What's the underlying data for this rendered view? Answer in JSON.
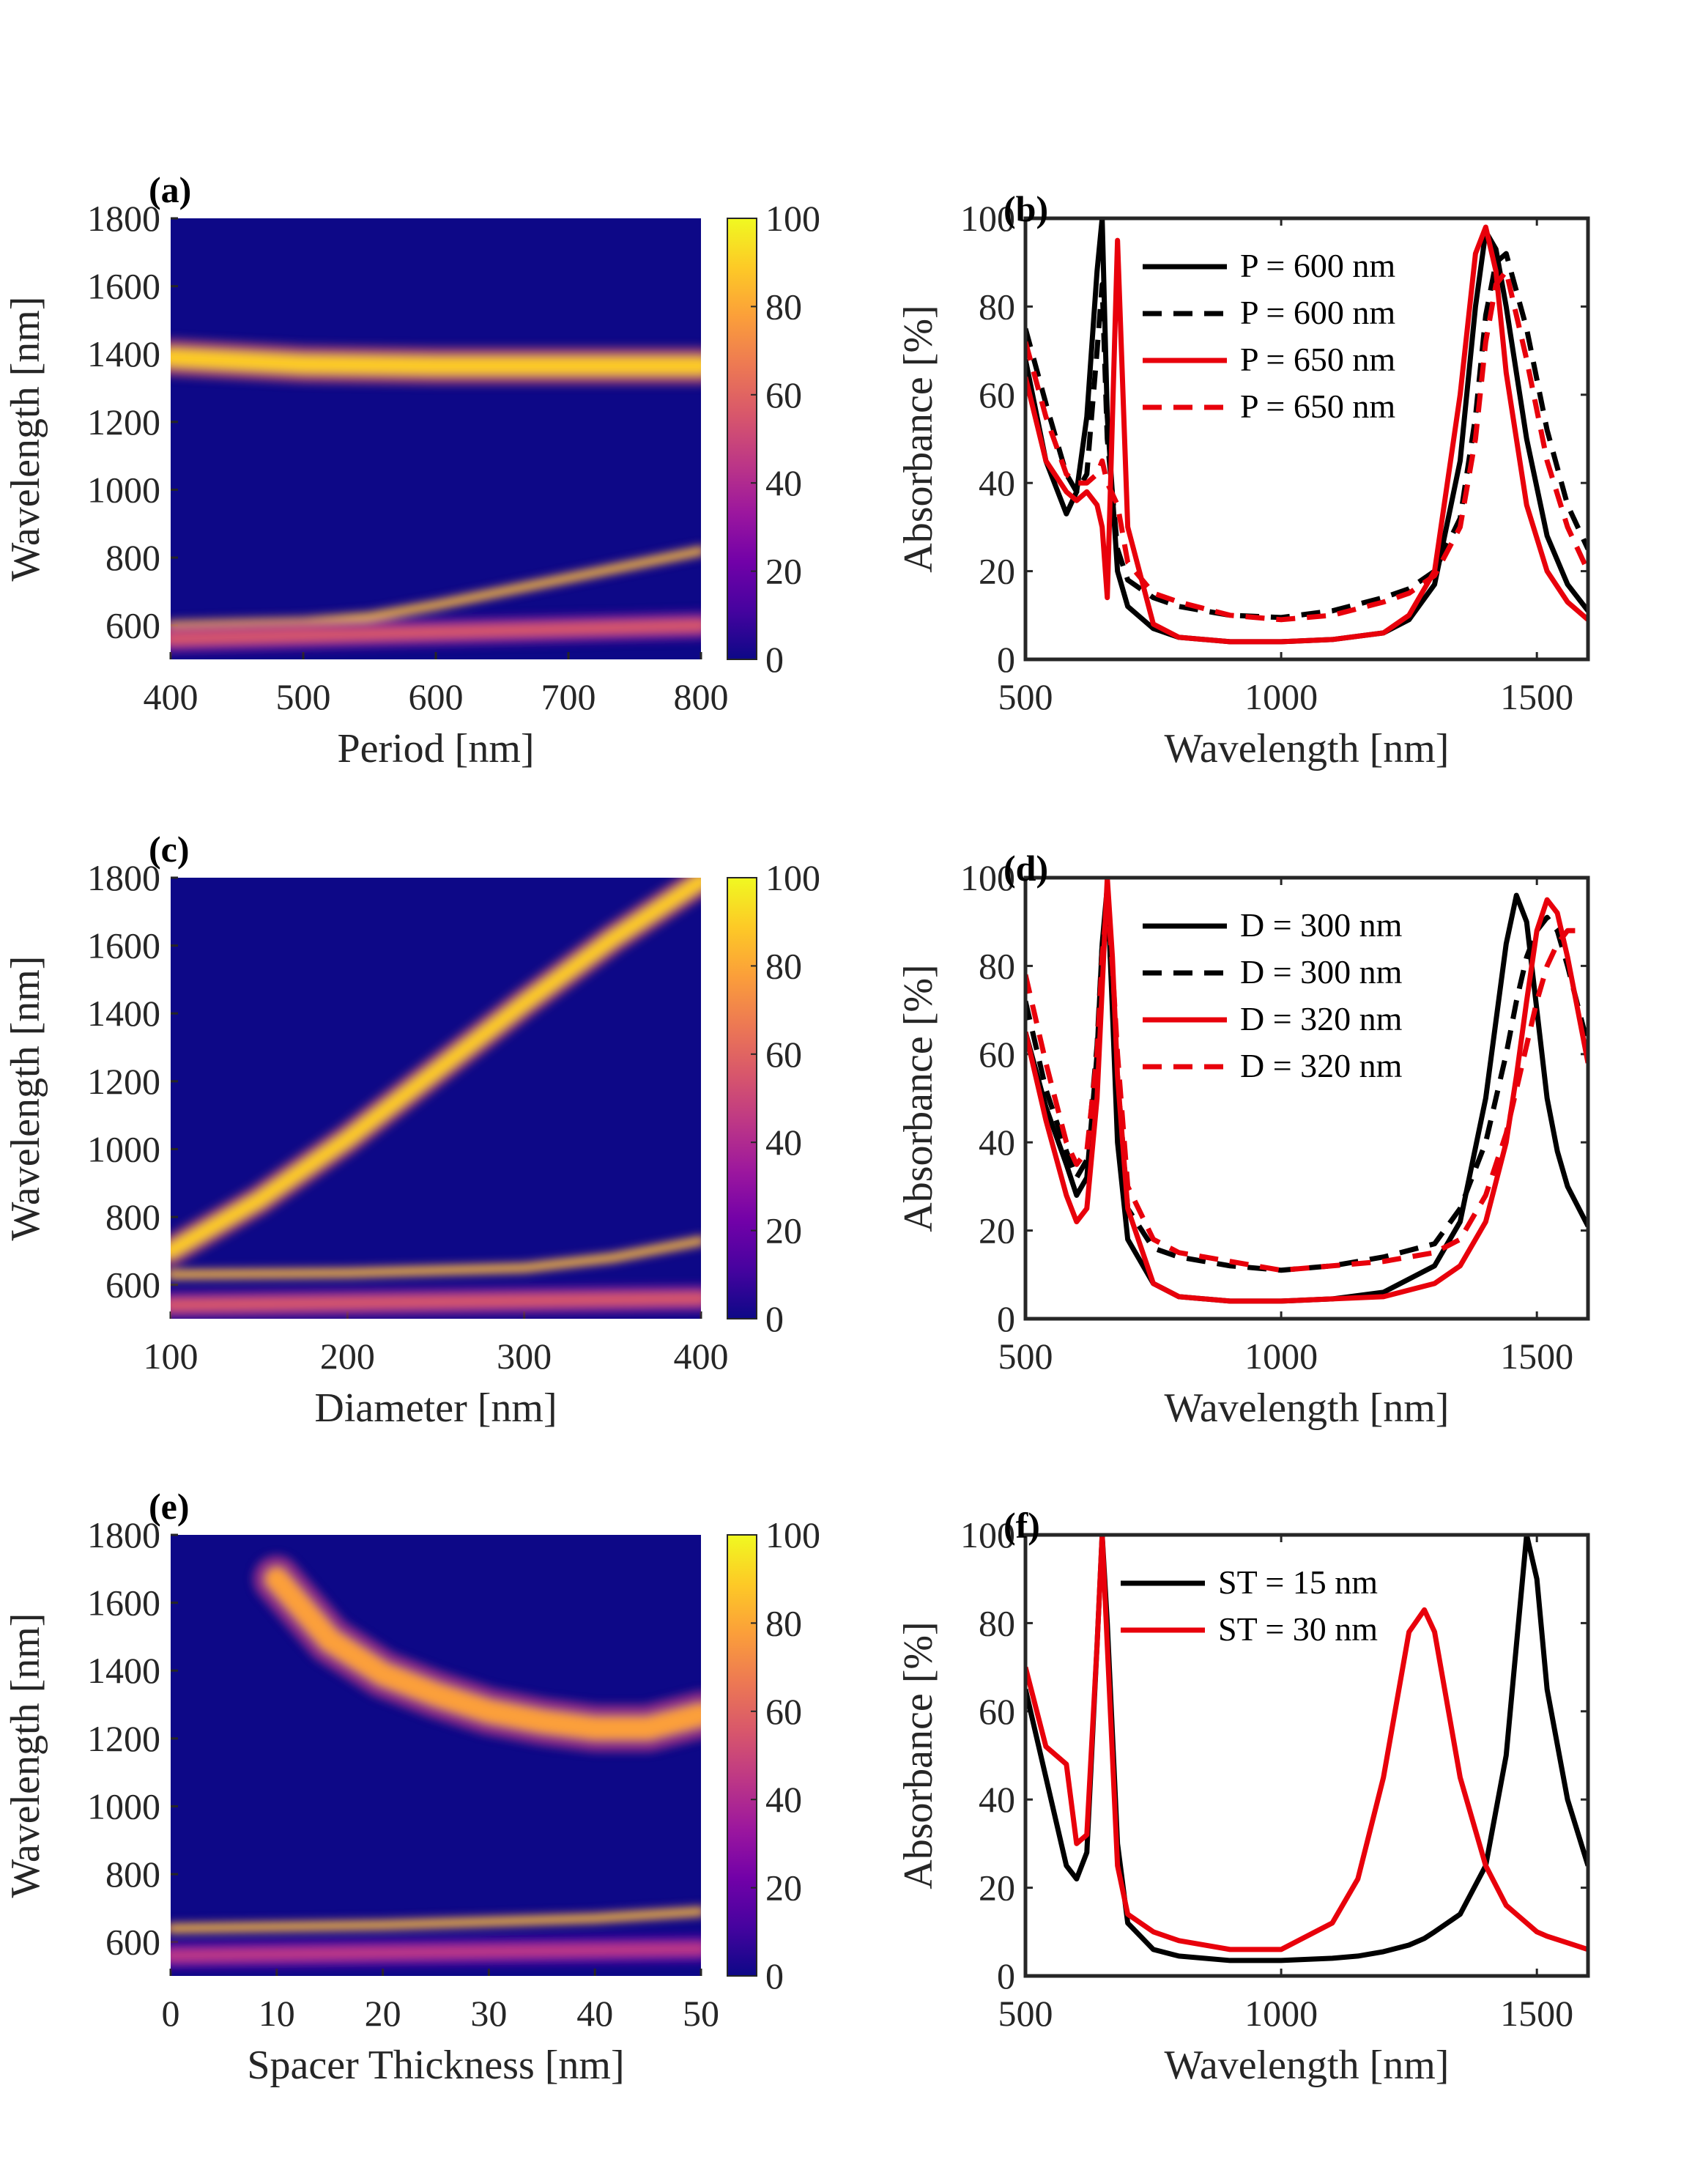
{
  "colormap": [
    "#0d0887",
    "#46039f",
    "#7201a8",
    "#9c179e",
    "#bd3786",
    "#d8576b",
    "#ed7953",
    "#fb9f3a",
    "#fdca26",
    "#f0f921"
  ],
  "chart_data": [
    {
      "panel": "(a)",
      "type": "heatmap",
      "xlabel": "Period [nm]",
      "ylabel": "Wavelength [nm]",
      "xlim": [
        400,
        800
      ],
      "ylim": [
        500,
        1800
      ],
      "xticks": [
        "400",
        "500",
        "600",
        "700",
        "800"
      ],
      "yticks": [
        "600",
        "800",
        "1000",
        "1200",
        "1400",
        "1600",
        "1800"
      ],
      "colorbar": {
        "range": [
          0,
          100
        ],
        "ticks": [
          "0",
          "20",
          "40",
          "60",
          "80",
          "100"
        ]
      },
      "features": [
        {
          "name": "upper resonance band",
          "x": [
            400,
            500,
            600,
            700,
            800
          ],
          "y": [
            1390,
            1370,
            1365,
            1365,
            1365
          ],
          "intensity": 90,
          "width_nm": 55
        },
        {
          "name": "lower resonance branch",
          "x": [
            400,
            500,
            550,
            600,
            700,
            800
          ],
          "y": [
            600,
            610,
            625,
            660,
            740,
            820
          ],
          "intensity": 85,
          "width_nm": 14
        },
        {
          "name": "lower flat band",
          "x": [
            400,
            800
          ],
          "y": [
            560,
            600
          ],
          "intensity": 55,
          "width_nm": 40
        }
      ]
    },
    {
      "panel": "(b)",
      "type": "line",
      "xlabel": "Wavelength [nm]",
      "ylabel": "Absorbance [%]",
      "xlim": [
        500,
        1600
      ],
      "ylim": [
        0,
        100
      ],
      "xticks": [
        "500",
        "1000",
        "1500"
      ],
      "yticks": [
        "0",
        "20",
        "40",
        "60",
        "80",
        "100"
      ],
      "x": [
        500,
        540,
        580,
        600,
        620,
        640,
        650,
        660,
        680,
        700,
        750,
        800,
        900,
        1000,
        1100,
        1200,
        1250,
        1300,
        1350,
        1380,
        1400,
        1420,
        1440,
        1480,
        1520,
        1560,
        1600
      ],
      "series": [
        {
          "name": "P = 600 nm",
          "color": "#000000",
          "dash": "solid",
          "values": [
            68,
            45,
            33,
            38,
            55,
            88,
            100,
            55,
            20,
            12,
            7,
            5,
            4,
            4,
            4.5,
            6,
            9,
            17,
            45,
            80,
            97,
            93,
            80,
            50,
            28,
            17,
            11
          ]
        },
        {
          "name": "P = 600 nm",
          "color": "#000000",
          "dash": "dashed",
          "values": [
            75,
            58,
            42,
            38,
            42,
            70,
            85,
            50,
            25,
            18,
            14,
            12,
            10,
            9.5,
            11,
            14,
            16,
            20,
            32,
            55,
            78,
            90,
            92,
            75,
            52,
            35,
            25
          ]
        },
        {
          "name": "P = 650 nm",
          "color": "#e8000b",
          "dash": "solid",
          "values": [
            64,
            45,
            38,
            36,
            38,
            35,
            30,
            14,
            95,
            30,
            8,
            5,
            4,
            4,
            4.5,
            6,
            10,
            20,
            60,
            92,
            98,
            88,
            65,
            35,
            20,
            13,
            9
          ]
        },
        {
          "name": "P = 650 nm",
          "color": "#e8000b",
          "dash": "dashed",
          "values": [
            72,
            55,
            42,
            40,
            40,
            42,
            45,
            40,
            35,
            22,
            15,
            13,
            10,
            9,
            10,
            13,
            15,
            19,
            30,
            50,
            72,
            85,
            88,
            68,
            45,
            30,
            20
          ]
        }
      ]
    },
    {
      "panel": "(c)",
      "type": "heatmap",
      "xlabel": "Diameter [nm]",
      "ylabel": "Wavelength [nm]",
      "xlim": [
        100,
        400
      ],
      "ylim": [
        500,
        1800
      ],
      "xticks": [
        "100",
        "200",
        "300",
        "400"
      ],
      "yticks": [
        "600",
        "800",
        "1000",
        "1200",
        "1400",
        "1600",
        "1800"
      ],
      "colorbar": {
        "range": [
          0,
          100
        ],
        "ticks": [
          "0",
          "20",
          "40",
          "60",
          "80",
          "100"
        ]
      },
      "features": [
        {
          "name": "diagonal resonance",
          "x": [
            100,
            150,
            200,
            250,
            300,
            350,
            400
          ],
          "y": [
            700,
            850,
            1030,
            1230,
            1430,
            1620,
            1790
          ],
          "intensity": 90,
          "width_nm": 45
        },
        {
          "name": "lower flat band",
          "x": [
            100,
            200,
            300,
            350,
            400
          ],
          "y": [
            630,
            635,
            650,
            680,
            730
          ],
          "intensity": 85,
          "width_nm": 14
        },
        {
          "name": "bottom band",
          "x": [
            100,
            400
          ],
          "y": [
            540,
            560
          ],
          "intensity": 50,
          "width_nm": 40
        }
      ]
    },
    {
      "panel": "(d)",
      "type": "line",
      "xlabel": "Wavelength [nm]",
      "ylabel": "Absorbance [%]",
      "xlim": [
        500,
        1600
      ],
      "ylim": [
        0,
        100
      ],
      "xticks": [
        "500",
        "1000",
        "1500"
      ],
      "yticks": [
        "0",
        "20",
        "40",
        "60",
        "80",
        "100"
      ],
      "x": [
        500,
        540,
        580,
        600,
        620,
        640,
        650,
        660,
        670,
        680,
        700,
        750,
        800,
        900,
        1000,
        1100,
        1200,
        1300,
        1350,
        1400,
        1440,
        1460,
        1480,
        1500,
        1520,
        1540,
        1560,
        1600
      ],
      "series": [
        {
          "name": "D = 300 nm",
          "color": "#000000",
          "dash": "solid",
          "values": [
            65,
            48,
            35,
            28,
            32,
            60,
            85,
            98,
            70,
            40,
            18,
            8,
            5,
            4,
            4,
            4.5,
            6,
            12,
            22,
            50,
            85,
            96,
            90,
            70,
            50,
            38,
            30,
            21
          ]
        },
        {
          "name": "D = 300 nm",
          "color": "#000000",
          "dash": "dashed",
          "values": [
            72,
            52,
            38,
            32,
            36,
            62,
            85,
            92,
            75,
            55,
            25,
            16,
            14,
            12,
            11,
            12,
            14,
            17,
            25,
            40,
            60,
            72,
            82,
            88,
            91,
            88,
            80,
            62
          ]
        },
        {
          "name": "D = 320 nm",
          "color": "#e8000b",
          "dash": "solid",
          "values": [
            65,
            45,
            28,
            22,
            25,
            50,
            75,
            100,
            82,
            55,
            25,
            8,
            5,
            4,
            4,
            4.5,
            5,
            8,
            12,
            22,
            40,
            55,
            72,
            88,
            95,
            92,
            82,
            58
          ]
        },
        {
          "name": "D = 320 nm",
          "color": "#e8000b",
          "dash": "dashed",
          "values": [
            78,
            58,
            40,
            35,
            38,
            60,
            82,
            95,
            80,
            60,
            30,
            18,
            15,
            13,
            11,
            12,
            13,
            15,
            18,
            28,
            42,
            52,
            62,
            72,
            80,
            85,
            88,
            88
          ]
        }
      ]
    },
    {
      "panel": "(e)",
      "type": "heatmap",
      "xlabel": "Spacer Thickness [nm]",
      "ylabel": "Wavelength [nm]",
      "xlim": [
        0,
        50
      ],
      "ylim": [
        500,
        1800
      ],
      "xticks": [
        "0",
        "10",
        "20",
        "30",
        "40",
        "50"
      ],
      "yticks": [
        "600",
        "800",
        "1000",
        "1200",
        "1400",
        "1600",
        "1800"
      ],
      "colorbar": {
        "range": [
          0,
          100
        ],
        "ticks": [
          "0",
          "20",
          "40",
          "60",
          "80",
          "100"
        ]
      },
      "features": [
        {
          "name": "upper resonance curve",
          "x": [
            10,
            15,
            20,
            25,
            30,
            35,
            40,
            45,
            50
          ],
          "y": [
            1670,
            1490,
            1390,
            1330,
            1280,
            1250,
            1230,
            1230,
            1270
          ],
          "intensity": 80,
          "width_nm": 70
        },
        {
          "name": "lower flat band",
          "x": [
            0,
            20,
            40,
            50
          ],
          "y": [
            640,
            650,
            670,
            690
          ],
          "intensity": 90,
          "width_nm": 14
        },
        {
          "name": "bottom band",
          "x": [
            0,
            50
          ],
          "y": [
            560,
            580
          ],
          "intensity": 45,
          "width_nm": 40
        }
      ]
    },
    {
      "panel": "(f)",
      "type": "line",
      "xlabel": "Wavelength [nm]",
      "ylabel": "Absorbance [%]",
      "xlim": [
        500,
        1600
      ],
      "ylim": [
        0,
        100
      ],
      "xticks": [
        "500",
        "1000",
        "1500"
      ],
      "yticks": [
        "0",
        "20",
        "40",
        "60",
        "80",
        "100"
      ],
      "x": [
        500,
        540,
        580,
        600,
        620,
        640,
        650,
        660,
        680,
        700,
        750,
        800,
        900,
        1000,
        1100,
        1150,
        1200,
        1250,
        1280,
        1300,
        1350,
        1400,
        1440,
        1460,
        1480,
        1500,
        1520,
        1560,
        1600
      ],
      "series": [
        {
          "name": "ST = 15 nm",
          "color": "#000000",
          "dash": "solid",
          "values": [
            65,
            45,
            25,
            22,
            28,
            75,
            100,
            80,
            30,
            12,
            6,
            4.5,
            3.5,
            3.5,
            4,
            4.5,
            5.5,
            7,
            8.5,
            10,
            14,
            25,
            50,
            75,
            100,
            90,
            65,
            40,
            25
          ]
        },
        {
          "name": "ST = 30 nm",
          "color": "#e8000b",
          "dash": "solid",
          "values": [
            70,
            52,
            48,
            30,
            32,
            75,
            100,
            75,
            25,
            14,
            10,
            8,
            6,
            6,
            12,
            22,
            45,
            78,
            83,
            78,
            45,
            25,
            16,
            14,
            12,
            10,
            9,
            7.5,
            6
          ]
        }
      ]
    }
  ]
}
